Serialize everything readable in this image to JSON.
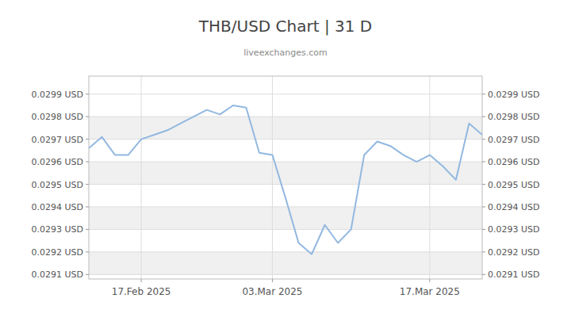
{
  "chart_data": {
    "type": "line",
    "title": "THB/USD Chart | 31 D",
    "subtitle": "liveexchanges.com",
    "color": "#92b8e0",
    "grid": true,
    "x": [
      0,
      1,
      2,
      3,
      4,
      5,
      6,
      7,
      8,
      9,
      10,
      11,
      12,
      13,
      14,
      15,
      16,
      17,
      18,
      19,
      20,
      21,
      22,
      23,
      24,
      25,
      26,
      27,
      28,
      29,
      30
    ],
    "values": [
      0.02966,
      0.02971,
      0.02963,
      0.02963,
      0.0297,
      0.02972,
      0.02974,
      0.02977,
      0.0298,
      0.02983,
      0.02981,
      0.02985,
      0.02984,
      0.02964,
      0.02963,
      0.02944,
      0.02924,
      0.02919,
      0.02932,
      0.02924,
      0.0293,
      0.02963,
      0.02969,
      0.02967,
      0.02963,
      0.0296,
      0.02963,
      0.02958,
      0.02952,
      0.02977,
      0.02972
    ],
    "xlim": [
      0,
      30
    ],
    "xticks": [
      {
        "value": 4,
        "label": "17.Feb 2025"
      },
      {
        "value": 14,
        "label": "03.Mar 2025"
      },
      {
        "value": 26,
        "label": "17.Mar 2025"
      }
    ],
    "ylim": [
      0.02908,
      0.02998
    ],
    "yticks": [
      {
        "value": 0.0291,
        "label": "0.0291 USD"
      },
      {
        "value": 0.0292,
        "label": "0.0292 USD"
      },
      {
        "value": 0.0293,
        "label": "0.0293 USD"
      },
      {
        "value": 0.0294,
        "label": "0.0294 USD"
      },
      {
        "value": 0.0295,
        "label": "0.0295 USD"
      },
      {
        "value": 0.0296,
        "label": "0.0296 USD"
      },
      {
        "value": 0.0297,
        "label": "0.0297 USD"
      },
      {
        "value": 0.0298,
        "label": "0.0298 USD"
      },
      {
        "value": 0.0299,
        "label": "0.0299 USD"
      }
    ]
  }
}
